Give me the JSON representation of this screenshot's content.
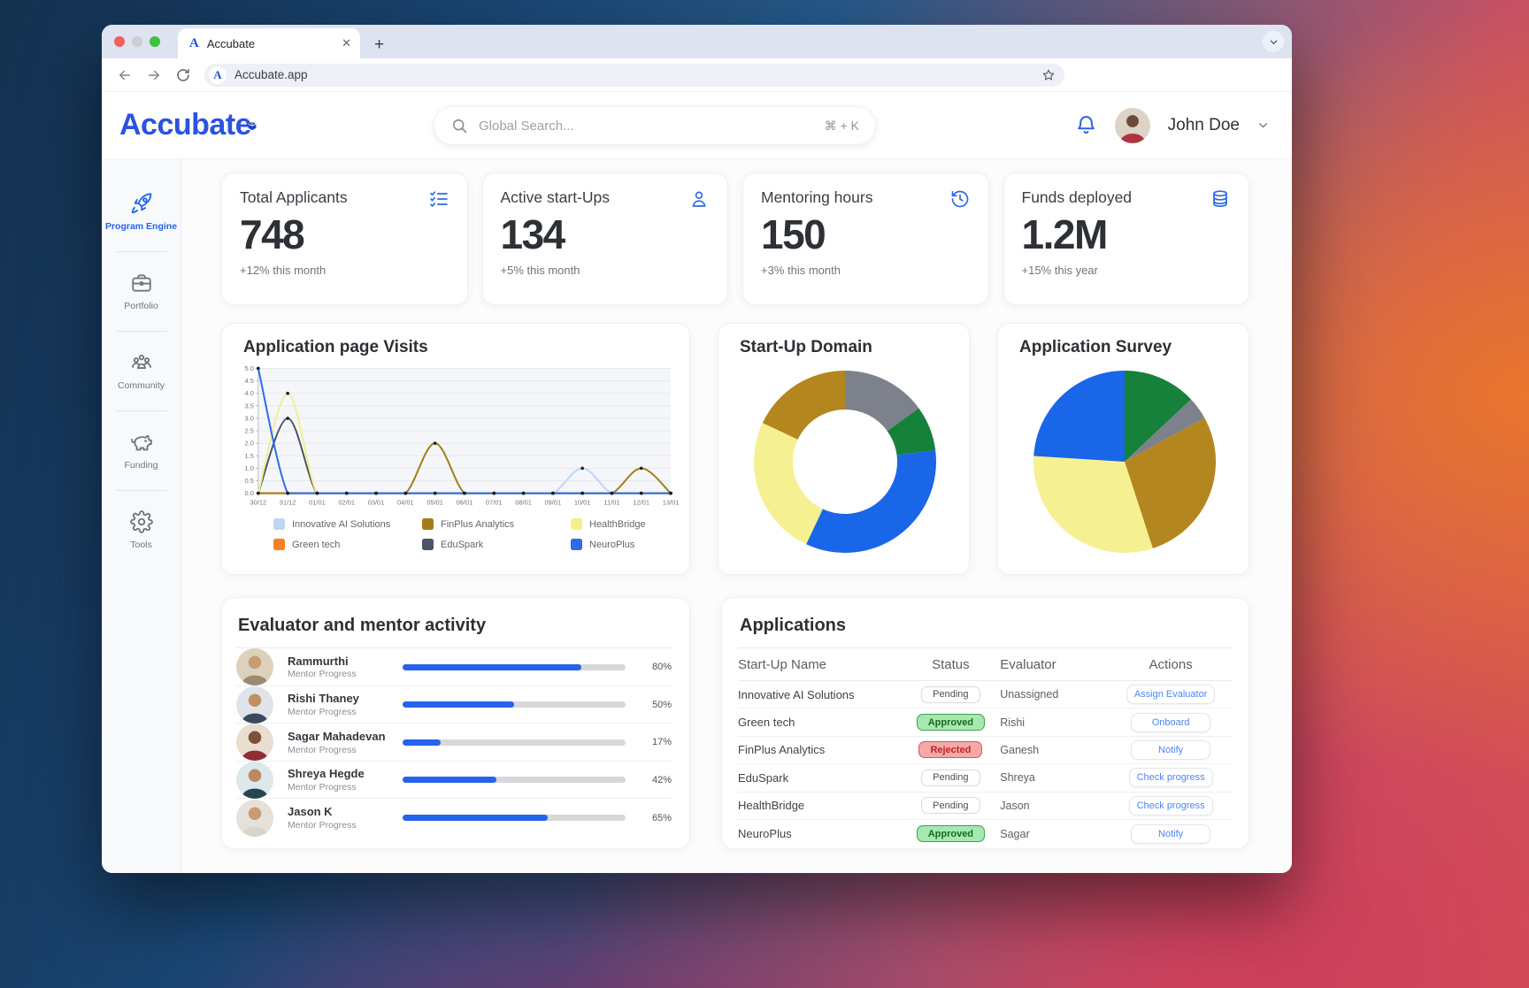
{
  "browser": {
    "tab_title": "Accubate",
    "url": "Accubate.app"
  },
  "header": {
    "logo": "Accubate",
    "search_placeholder": "Global Search...",
    "search_shortcut": "⌘ + K",
    "user_name": "John Doe"
  },
  "sidebar": {
    "items": [
      {
        "label": "Program Engine",
        "icon": "rocket-icon",
        "active": true
      },
      {
        "label": "Portfolio",
        "icon": "briefcase-icon",
        "active": false
      },
      {
        "label": "Community",
        "icon": "people-icon",
        "active": false
      },
      {
        "label": "Funding",
        "icon": "piggy-bank-icon",
        "active": false
      },
      {
        "label": "Tools",
        "icon": "gear-icon",
        "active": false
      }
    ]
  },
  "stats": [
    {
      "title": "Total Applicants",
      "value": "748",
      "change": "+12% this month",
      "icon": "checklist-icon"
    },
    {
      "title": "Active start-Ups",
      "value": "134",
      "change": "+5% this month",
      "icon": "person-icon"
    },
    {
      "title": "Mentoring hours",
      "value": "150",
      "change": "+3% this month",
      "icon": "history-clock-icon"
    },
    {
      "title": "Funds deployed",
      "value": "1.2M",
      "change": "+15% this year",
      "icon": "coins-icon"
    }
  ],
  "chart_data": [
    {
      "type": "line",
      "title": "Application page Visits",
      "x": [
        "30/12",
        "31/12",
        "01/01",
        "02/01",
        "03/01",
        "04/01",
        "05/01",
        "06/01",
        "07/01",
        "08/01",
        "09/01",
        "10/01",
        "11/01",
        "12/01",
        "13/01"
      ],
      "ylim": [
        0,
        5
      ],
      "ytick_step": 0.5,
      "grid": true,
      "series": [
        {
          "name": "Innovative AI Solutions",
          "color": "#bcd7f8",
          "values": [
            0,
            0,
            0,
            0,
            0,
            0,
            0,
            0,
            0,
            0,
            0,
            1,
            0,
            0,
            0
          ]
        },
        {
          "name": "Green tech",
          "color": "#f8821f",
          "values": [
            0,
            0,
            0,
            0,
            0,
            0,
            0,
            0,
            0,
            0,
            0,
            0,
            0,
            0,
            0
          ]
        },
        {
          "name": "FinPlus Analytics",
          "color": "#a57d18",
          "values": [
            0,
            0,
            0,
            0,
            0,
            0,
            2,
            0,
            0,
            0,
            0,
            0,
            0,
            1,
            0
          ]
        },
        {
          "name": "EduSpark",
          "color": "#4d5466",
          "values": [
            0,
            3,
            0,
            0,
            0,
            0,
            0,
            0,
            0,
            0,
            0,
            0,
            0,
            0,
            0
          ]
        },
        {
          "name": "HealthBridge",
          "color": "#f2ef8e",
          "values": [
            0,
            4,
            0,
            0,
            0,
            0,
            0,
            0,
            0,
            0,
            0,
            0,
            0,
            0,
            0
          ]
        },
        {
          "name": "NeuroPlus",
          "color": "#2e6be8",
          "values": [
            5,
            0,
            0,
            0,
            0,
            0,
            0,
            0,
            0,
            0,
            0,
            0,
            0,
            0,
            0
          ]
        }
      ],
      "legend_order": [
        "Innovative AI Solutions",
        "FinPlus Analytics",
        "HealthBridge",
        "Green tech",
        "EduSpark",
        "NeuroPlus"
      ],
      "legend_position": "bottom"
    },
    {
      "type": "donut",
      "title": "Start-Up Domain",
      "slices": [
        {
          "label": "gray-segment",
          "color": "#7d818c",
          "value": 15
        },
        {
          "label": "green-segment",
          "color": "#15813a",
          "value": 8
        },
        {
          "label": "blue-segment",
          "color": "#1a66e8",
          "value": 34
        },
        {
          "label": "yellow-segment",
          "color": "#f5f192",
          "value": 25
        },
        {
          "label": "gold-segment",
          "color": "#b3861f",
          "value": 18
        }
      ]
    },
    {
      "type": "pie",
      "title": "Application Survey",
      "slices": [
        {
          "label": "green-segment",
          "color": "#15813a",
          "value": 13
        },
        {
          "label": "gray-segment",
          "color": "#7d818c",
          "value": 4
        },
        {
          "label": "gold-segment",
          "color": "#b3861f",
          "value": 28
        },
        {
          "label": "yellow-segment",
          "color": "#f5f192",
          "value": 31
        },
        {
          "label": "blue-segment",
          "color": "#1a66e8",
          "value": 24
        }
      ]
    }
  ],
  "evaluators": {
    "title": "Evaluator and mentor activity",
    "rows": [
      {
        "name": "Rammurthi",
        "role": "Mentor Progress",
        "percent": 80
      },
      {
        "name": "Rishi Thaney",
        "role": "Mentor Progress",
        "percent": 50
      },
      {
        "name": "Sagar Mahadevan",
        "role": "Mentor Progress",
        "percent": 17
      },
      {
        "name": "Shreya Hegde",
        "role": "Mentor Progress",
        "percent": 42
      },
      {
        "name": "Jason K",
        "role": "Mentor Progress",
        "percent": 65
      }
    ]
  },
  "applications": {
    "title": "Applications",
    "columns": [
      "Start-Up Name",
      "Status",
      "Evaluator",
      "Actions"
    ],
    "rows": [
      {
        "name": "Innovative AI Solutions",
        "status": "Pending",
        "status_type": "pending",
        "evaluator": "Unassigned",
        "action": "Assign Evaluator"
      },
      {
        "name": "Green tech",
        "status": "Approved",
        "status_type": "approved",
        "evaluator": "Rishi",
        "action": "Onboard"
      },
      {
        "name": "FinPlus Analytics",
        "status": "Rejected",
        "status_type": "rejected",
        "evaluator": "Ganesh",
        "action": "Notify"
      },
      {
        "name": "EduSpark",
        "status": "Pending",
        "status_type": "pending",
        "evaluator": "Shreya",
        "action": "Check progress"
      },
      {
        "name": "HealthBridge",
        "status": "Pending",
        "status_type": "pending",
        "evaluator": "Jason",
        "action": "Check progress"
      },
      {
        "name": "NeuroPlus",
        "status": "Approved",
        "status_type": "approved",
        "evaluator": "Sagar",
        "action": "Notify"
      }
    ]
  },
  "colors": {
    "accent_blue": "#2563eb",
    "progress_fill": "#2563eb",
    "approved_green": "#17691f",
    "rejected_red": "#c22222"
  }
}
